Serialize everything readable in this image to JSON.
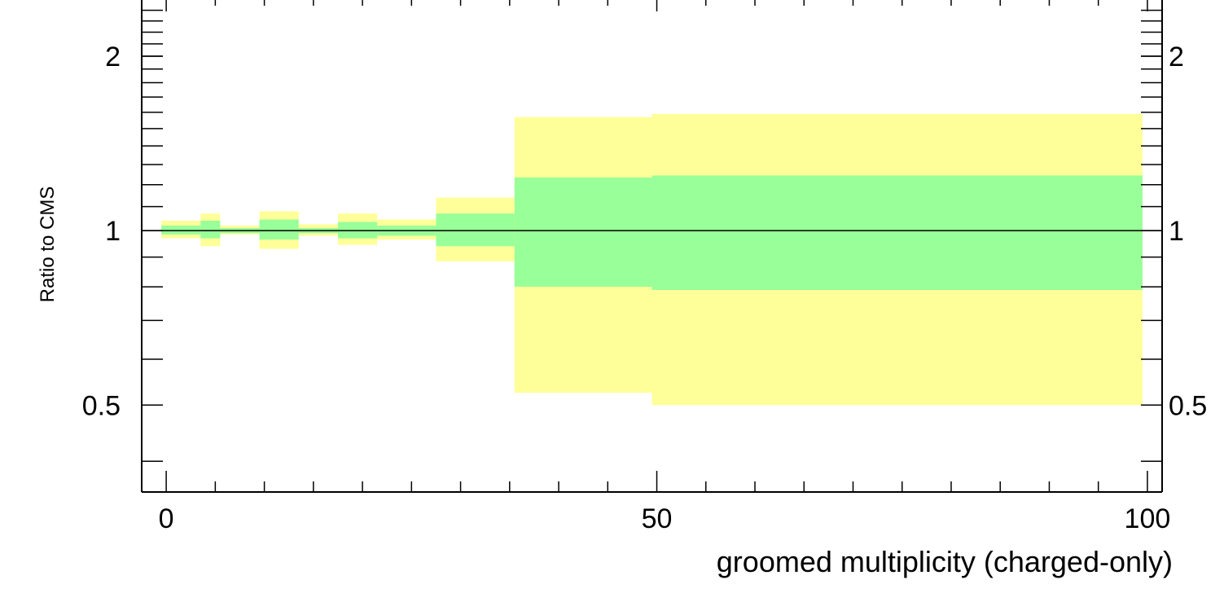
{
  "chart_data": {
    "type": "area",
    "xlabel": "groomed multiplicity (charged-only)",
    "ylabel": "Ratio to CMS",
    "xlim": [
      -2.5,
      101.5
    ],
    "ylim": [
      0.354,
      2.5
    ],
    "y_scale": "log",
    "x_ticks": [
      0,
      50,
      100
    ],
    "y_ticks": [
      0.5,
      1,
      2
    ],
    "x_tick_labels": [
      "0",
      "50",
      "100"
    ],
    "y_tick_labels": [
      "0.5",
      "1",
      "2"
    ],
    "y_ticks_mirrored_right": true,
    "reference_line": 1,
    "band_colors": {
      "outer": "#ffff99",
      "inner": "#99ff99",
      "reference": "#000000"
    },
    "bins": [
      {
        "x_low": -0.5,
        "x_high": 3.5,
        "outer": [
          0.97,
          1.04
        ],
        "inner": [
          0.985,
          1.02
        ]
      },
      {
        "x_low": 3.5,
        "x_high": 5.5,
        "outer": [
          0.94,
          1.07
        ],
        "inner": [
          0.97,
          1.04
        ]
      },
      {
        "x_low": 5.5,
        "x_high": 9.5,
        "outer": [
          0.985,
          1.02
        ],
        "inner": [
          0.99,
          1.01
        ]
      },
      {
        "x_low": 9.5,
        "x_high": 13.5,
        "outer": [
          0.93,
          1.08
        ],
        "inner": [
          0.965,
          1.045
        ]
      },
      {
        "x_low": 13.5,
        "x_high": 17.5,
        "outer": [
          0.98,
          1.025
        ],
        "inner": [
          0.99,
          1.01
        ]
      },
      {
        "x_low": 17.5,
        "x_high": 21.5,
        "outer": [
          0.945,
          1.07
        ],
        "inner": [
          0.97,
          1.035
        ]
      },
      {
        "x_low": 21.5,
        "x_high": 27.5,
        "outer": [
          0.965,
          1.045
        ],
        "inner": [
          0.98,
          1.02
        ]
      },
      {
        "x_low": 27.5,
        "x_high": 35.5,
        "outer": [
          0.885,
          1.14
        ],
        "inner": [
          0.94,
          1.07
        ]
      },
      {
        "x_low": 35.5,
        "x_high": 49.5,
        "outer": [
          0.525,
          1.57
        ],
        "inner": [
          0.8,
          1.235
        ]
      },
      {
        "x_low": 49.5,
        "x_high": 99.5,
        "outer": [
          0.5,
          1.59
        ],
        "inner": [
          0.79,
          1.245
        ]
      }
    ]
  }
}
